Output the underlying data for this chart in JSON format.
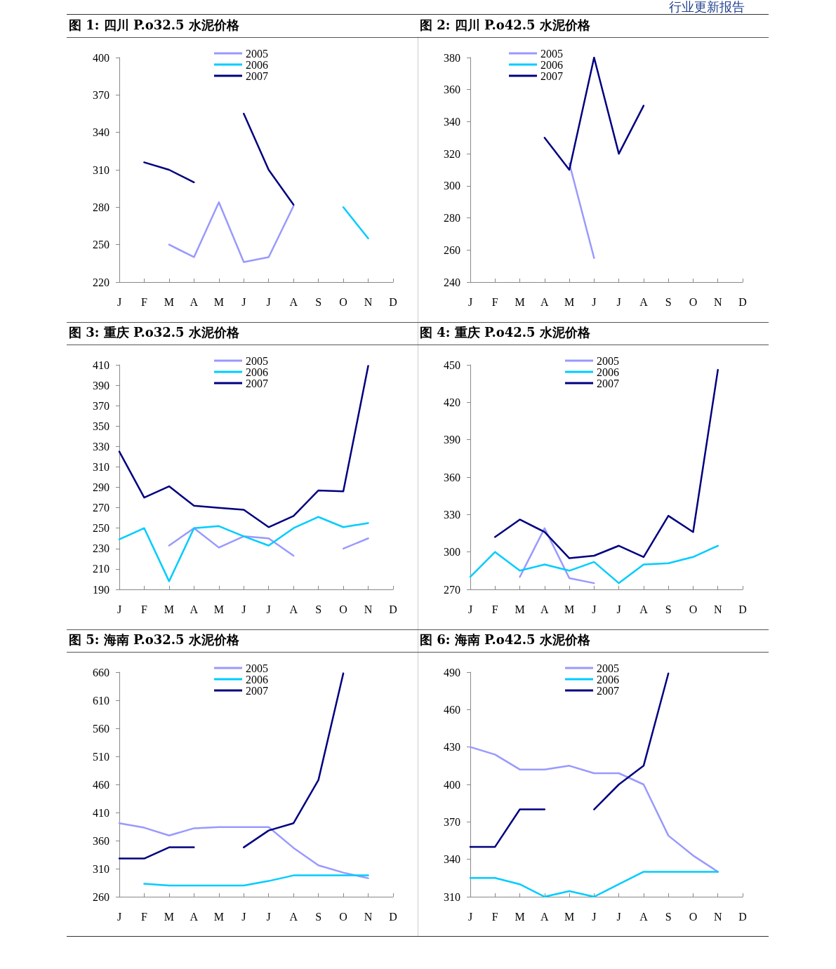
{
  "chart_data": [
    {
      "type": "line",
      "title": "图 1: 四川 P.o32.5 水泥价格",
      "categories": [
        "J",
        "F",
        "M",
        "A",
        "M",
        "J",
        "J",
        "A",
        "S",
        "O",
        "N",
        "D"
      ],
      "ylim": [
        220,
        400
      ],
      "yticks": [
        220,
        250,
        280,
        310,
        340,
        370,
        400
      ],
      "legend": "top",
      "marker": "none",
      "line_style": "solid",
      "series": [
        {
          "name": "2005",
          "color": "#9999ff",
          "values": [
            null,
            null,
            250,
            240,
            284,
            236,
            240,
            281,
            null,
            null,
            null,
            null
          ]
        },
        {
          "name": "2006",
          "color": "#00ccff",
          "values": [
            null,
            null,
            null,
            null,
            null,
            null,
            null,
            null,
            null,
            280,
            255,
            null
          ]
        },
        {
          "name": "2007",
          "color": "#000080",
          "values": [
            null,
            316,
            310,
            300,
            null,
            355,
            310,
            282,
            null,
            null,
            null,
            null
          ]
        }
      ]
    },
    {
      "type": "line",
      "title": "图 2: 四川 P.o42.5 水泥价格",
      "annotations": [
        "行业更新报告"
      ],
      "categories": [
        "J",
        "F",
        "M",
        "A",
        "M",
        "J",
        "J",
        "A",
        "S",
        "O",
        "N",
        "D"
      ],
      "ylim": [
        240,
        380
      ],
      "yticks": [
        240,
        260,
        280,
        300,
        320,
        340,
        360,
        380
      ],
      "legend": "top left",
      "marker": "none",
      "line_style": "solid",
      "series": [
        {
          "name": "2005",
          "color": "#9999ff",
          "values": [
            null,
            null,
            null,
            null,
            314,
            255,
            null,
            null,
            null,
            null,
            null,
            null
          ]
        },
        {
          "name": "2006",
          "color": "#00ccff",
          "values": [
            null,
            null,
            null,
            null,
            null,
            null,
            null,
            null,
            null,
            null,
            null,
            null
          ]
        },
        {
          "name": "2007",
          "color": "#000080",
          "values": [
            null,
            null,
            null,
            330,
            310,
            380,
            320,
            350,
            null,
            null,
            null,
            null
          ]
        }
      ]
    },
    {
      "type": "line",
      "title": "图 3: 重庆 P.o32.5 水泥价格",
      "categories": [
        "J",
        "F",
        "M",
        "A",
        "M",
        "J",
        "J",
        "A",
        "S",
        "O",
        "N",
        "D"
      ],
      "ylim": [
        190,
        410
      ],
      "yticks": [
        190,
        210,
        230,
        250,
        270,
        290,
        310,
        330,
        350,
        370,
        390,
        410
      ],
      "legend": "top",
      "marker": "none",
      "line_style": "solid",
      "series": [
        {
          "name": "2005",
          "color": "#9999ff",
          "values": [
            null,
            null,
            233,
            250,
            231,
            242,
            240,
            223,
            null,
            230,
            240,
            null
          ]
        },
        {
          "name": "2006",
          "color": "#00ccff",
          "values": [
            239,
            250,
            198,
            250,
            252,
            242,
            233,
            250,
            261,
            251,
            255,
            null
          ]
        },
        {
          "name": "2007",
          "color": "#000080",
          "values": [
            325,
            280,
            291,
            272,
            270,
            268,
            251,
            262,
            287,
            286,
            409,
            null
          ]
        }
      ]
    },
    {
      "type": "line",
      "title": "图 4: 重庆 P.o42.5 水泥价格",
      "categories": [
        "J",
        "F",
        "M",
        "A",
        "M",
        "J",
        "J",
        "A",
        "S",
        "O",
        "N",
        "D"
      ],
      "ylim": [
        270,
        450
      ],
      "yticks": [
        270,
        300,
        330,
        360,
        390,
        420,
        450
      ],
      "legend": "top",
      "marker": "none",
      "line_style": "solid",
      "series": [
        {
          "name": "2005",
          "color": "#9999ff",
          "values": [
            null,
            null,
            280,
            319,
            279,
            275,
            null,
            null,
            null,
            null,
            null,
            null
          ]
        },
        {
          "name": "2006",
          "color": "#00ccff",
          "values": [
            280,
            300,
            285,
            290,
            285,
            292,
            275,
            290,
            291,
            296,
            305,
            null
          ]
        },
        {
          "name": "2007",
          "color": "#000080",
          "values": [
            null,
            312,
            326,
            316,
            295,
            297,
            305,
            296,
            329,
            316,
            446,
            null
          ]
        }
      ]
    },
    {
      "type": "line",
      "title": "图 5: 海南 P.o32.5 水泥价格",
      "categories": [
        "J",
        "F",
        "M",
        "A",
        "M",
        "J",
        "J",
        "A",
        "S",
        "O",
        "N",
        "D"
      ],
      "ylim": [
        260,
        660
      ],
      "yticks": [
        260,
        310,
        360,
        410,
        460,
        510,
        560,
        610,
        660
      ],
      "legend": "top",
      "marker": "none",
      "line_style": "solid",
      "series": [
        {
          "name": "2005",
          "color": "#9999ff",
          "values": [
            391,
            383,
            369,
            382,
            384,
            384,
            384,
            347,
            316,
            303,
            293,
            null
          ]
        },
        {
          "name": "2006",
          "color": "#00ccff",
          "values": [
            null,
            283,
            280,
            280,
            280,
            280,
            288,
            298,
            298,
            298,
            298,
            null
          ]
        },
        {
          "name": "2007",
          "color": "#000080",
          "values": [
            328,
            328,
            348,
            348,
            null,
            348,
            378,
            391,
            468,
            658,
            null,
            null
          ]
        }
      ]
    },
    {
      "type": "line",
      "title": "图 6: 海南 P.o42.5 水泥价格",
      "categories": [
        "J",
        "F",
        "M",
        "A",
        "M",
        "J",
        "J",
        "A",
        "S",
        "O",
        "N",
        "D"
      ],
      "ylim": [
        310,
        490
      ],
      "yticks": [
        310,
        340,
        370,
        400,
        430,
        460,
        490
      ],
      "legend": "top",
      "marker": "none",
      "line_style": "solid",
      "series": [
        {
          "name": "2005",
          "color": "#9999ff",
          "values": [
            430,
            424,
            412,
            412,
            415,
            409,
            409,
            400,
            359,
            343,
            330,
            null
          ]
        },
        {
          "name": "2006",
          "color": "#00ccff",
          "values": [
            325,
            325,
            320,
            310,
            314.5,
            310,
            320,
            330,
            330,
            330,
            330,
            null
          ]
        },
        {
          "name": "2007",
          "color": "#000080",
          "values": [
            350,
            350,
            380,
            380,
            null,
            380,
            400,
            415,
            489,
            null,
            null,
            null
          ]
        }
      ]
    }
  ]
}
